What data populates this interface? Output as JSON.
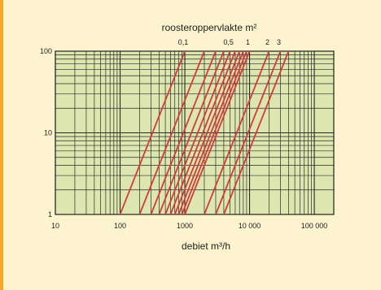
{
  "chart_data": {
    "type": "line",
    "title": "roosteroppervlakte m²",
    "xlabel": "debiet m³/h",
    "ylabel": "",
    "x_scale": "log",
    "y_scale": "log",
    "xlim": [
      10,
      200000
    ],
    "ylim": [
      1,
      100
    ],
    "x_ticks": [
      {
        "value": 10,
        "label": "10"
      },
      {
        "value": 100,
        "label": "100"
      },
      {
        "value": 1000,
        "label": "1000"
      },
      {
        "value": 10000,
        "label": "10 000"
      },
      {
        "value": 100000,
        "label": "100 000"
      }
    ],
    "y_ticks": [
      {
        "value": 1,
        "label": "1"
      },
      {
        "value": 10,
        "label": "10"
      },
      {
        "value": 100,
        "label": "100"
      }
    ],
    "grid": true,
    "background_color": "#dde6ae",
    "line_color": "#d23b3b",
    "area_labels": [
      {
        "area": 0.1,
        "label": "0,1"
      },
      {
        "area": 0.5,
        "label": "0,5"
      },
      {
        "area": 1,
        "label": "1"
      },
      {
        "area": 2,
        "label": "2"
      },
      {
        "area": 3,
        "label": "3"
      }
    ],
    "series": [
      {
        "x": [
          100,
          1000
        ]
      },
      {
        "x": [
          200,
          2000
        ]
      },
      {
        "x": [
          300,
          3000
        ]
      },
      {
        "x": [
          400,
          4000
        ]
      },
      {
        "x": [
          500,
          5000
        ]
      },
      {
        "x": [
          600,
          6000
        ]
      },
      {
        "x": [
          700,
          7000
        ]
      },
      {
        "x": [
          800,
          8000
        ]
      },
      {
        "x": [
          900,
          9000
        ]
      },
      {
        "x": [
          1000,
          10000
        ]
      },
      {
        "x": [
          2000,
          20000
        ]
      },
      {
        "x": [
          3000,
          30000
        ]
      },
      {
        "x": [
          4000,
          40000
        ]
      }
    ],
    "y_range_per_line": [
      1,
      100
    ]
  }
}
